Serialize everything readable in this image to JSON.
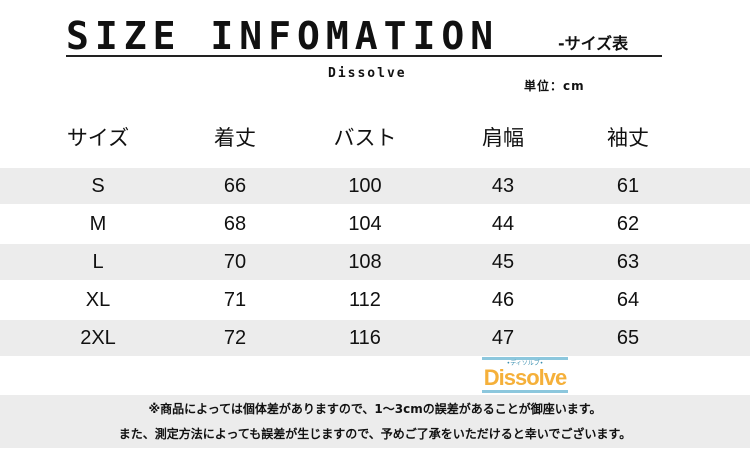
{
  "header": {
    "title": "SIZE INFOMATION",
    "subtitle": "-サイズ表",
    "brand": "Dissolve",
    "unit": "単位：cm"
  },
  "table": {
    "columns": [
      "サイズ",
      "着丈",
      "バスト",
      "肩幅",
      "袖丈"
    ],
    "rows": [
      [
        "S",
        "66",
        "100",
        "43",
        "61"
      ],
      [
        "M",
        "68",
        "104",
        "44",
        "62"
      ],
      [
        "L",
        "70",
        "108",
        "45",
        "63"
      ],
      [
        "XL",
        "71",
        "112",
        "46",
        "64"
      ],
      [
        "2XL",
        "72",
        "116",
        "47",
        "65"
      ]
    ]
  },
  "watermark": {
    "text": "Dissolve",
    "kana": "•ディソルブ•"
  },
  "notes": [
    "※商品によっては個体差がありますので、1～3cmの誤差があることが御座います。",
    "また、測定方法によっても誤差が生じますので、予めご了承をいただけると幸いでございます。"
  ],
  "colors": {
    "band": "#ececec",
    "text": "#111111",
    "watermark": "#f5b03a"
  }
}
